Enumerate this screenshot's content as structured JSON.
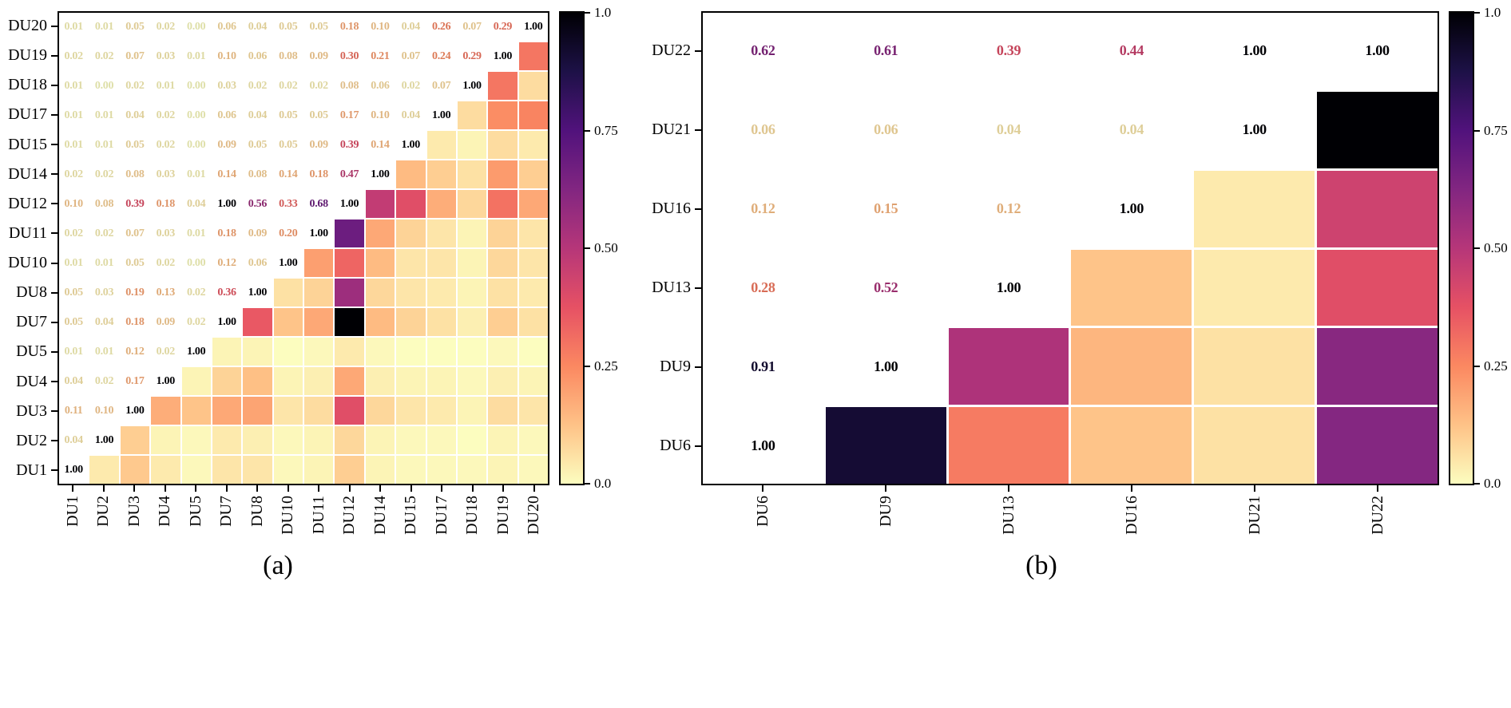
{
  "figure": {
    "caption_a": "(a)",
    "caption_b": "(b)",
    "background": "#ffffff"
  },
  "colormap": {
    "name": "magma_r",
    "rgb_stops": [
      [
        252,
        253,
        191
      ],
      [
        254,
        194,
        135
      ],
      [
        251,
        136,
        97
      ],
      [
        230,
        81,
        100
      ],
      [
        182,
        54,
        121
      ],
      [
        130,
        38,
        129
      ],
      [
        81,
        18,
        124
      ],
      [
        29,
        17,
        71
      ],
      [
        0,
        0,
        4
      ]
    ]
  },
  "colorbar": {
    "ticks": [
      {
        "value": 1.0,
        "label": "1.0"
      },
      {
        "value": 0.75,
        "label": "0.75"
      },
      {
        "value": 0.5,
        "label": "0.50"
      },
      {
        "value": 0.25,
        "label": "0.25"
      },
      {
        "value": 0.0,
        "label": "0.0"
      }
    ]
  },
  "chart_data": [
    {
      "type": "heatmap",
      "panel": "a",
      "caption": "(a)",
      "colormap": "magma_r",
      "vmin": 0.0,
      "vmax": 1.0,
      "annotation_format": "0.00",
      "layout": "lower-triangle colored cells, upper-left triangle shown as colormapped bold text on white, y-axis reversed",
      "labels": [
        "DU1",
        "DU2",
        "DU3",
        "DU4",
        "DU5",
        "DU7",
        "DU8",
        "DU10",
        "DU11",
        "DU12",
        "DU14",
        "DU15",
        "DU17",
        "DU18",
        "DU19",
        "DU20"
      ],
      "lower_triangle_rows": [
        [
          1.0
        ],
        [
          0.04,
          1.0
        ],
        [
          0.11,
          0.1,
          1.0
        ],
        [
          0.04,
          0.02,
          0.17,
          1.0
        ],
        [
          0.01,
          0.01,
          0.12,
          0.02,
          1.0
        ],
        [
          0.05,
          0.04,
          0.18,
          0.09,
          0.02,
          1.0
        ],
        [
          0.05,
          0.03,
          0.19,
          0.13,
          0.02,
          0.36,
          1.0
        ],
        [
          0.01,
          0.01,
          0.05,
          0.02,
          0.0,
          0.12,
          0.06,
          1.0
        ],
        [
          0.02,
          0.02,
          0.07,
          0.03,
          0.01,
          0.18,
          0.09,
          0.2,
          1.0
        ],
        [
          0.1,
          0.08,
          0.39,
          0.18,
          0.04,
          1.0,
          0.56,
          0.33,
          0.68,
          1.0
        ],
        [
          0.02,
          0.02,
          0.08,
          0.03,
          0.01,
          0.14,
          0.08,
          0.14,
          0.18,
          0.47,
          1.0
        ],
        [
          0.01,
          0.01,
          0.05,
          0.02,
          0.0,
          0.09,
          0.05,
          0.05,
          0.09,
          0.39,
          0.14,
          1.0
        ],
        [
          0.01,
          0.01,
          0.04,
          0.02,
          0.0,
          0.06,
          0.04,
          0.05,
          0.05,
          0.17,
          0.1,
          0.04,
          1.0
        ],
        [
          0.01,
          0.0,
          0.02,
          0.01,
          0.0,
          0.03,
          0.02,
          0.02,
          0.02,
          0.08,
          0.06,
          0.02,
          0.07,
          1.0
        ],
        [
          0.02,
          0.02,
          0.07,
          0.03,
          0.01,
          0.1,
          0.06,
          0.08,
          0.09,
          0.3,
          0.21,
          0.07,
          0.24,
          0.29,
          1.0
        ],
        [
          0.01,
          0.01,
          0.05,
          0.02,
          0.0,
          0.06,
          0.04,
          0.05,
          0.05,
          0.18,
          0.1,
          0.04,
          0.26,
          0.07,
          0.29,
          1.0
        ]
      ]
    },
    {
      "type": "heatmap",
      "panel": "b",
      "caption": "(b)",
      "colormap": "magma_r",
      "vmin": 0.0,
      "vmax": 1.0,
      "annotation_format": "0.00",
      "layout": "lower-triangle colored cells, upper-left triangle shown as colormapped bold text on white, y-axis reversed",
      "labels": [
        "DU6",
        "DU9",
        "DU13",
        "DU16",
        "DU21",
        "DU22"
      ],
      "lower_triangle_rows": [
        [
          1.0
        ],
        [
          0.91,
          1.0
        ],
        [
          0.28,
          0.52,
          1.0
        ],
        [
          0.12,
          0.15,
          0.12,
          1.0
        ],
        [
          0.06,
          0.06,
          0.04,
          0.04,
          1.0
        ],
        [
          0.62,
          0.61,
          0.39,
          0.44,
          1.0,
          1.0
        ]
      ]
    }
  ]
}
